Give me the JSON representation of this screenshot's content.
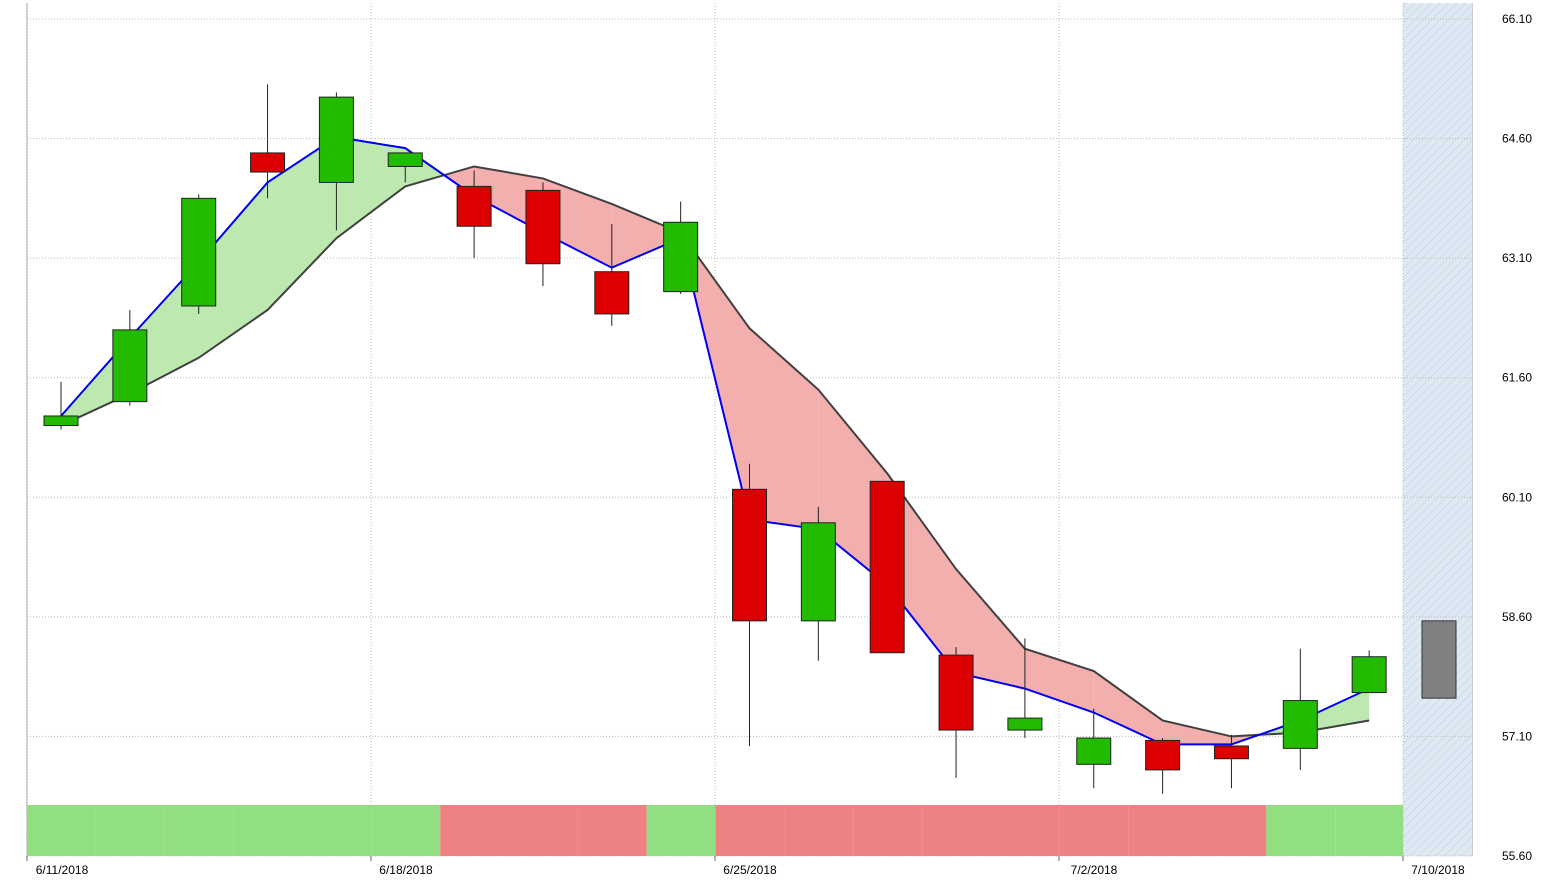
{
  "chart_data": {
    "type": "candlestick",
    "title": "",
    "xlabel": "",
    "ylabel": "",
    "ylim": [
      55.6,
      66.1
    ],
    "y_ticks": [
      "66.10",
      "64.60",
      "63.10",
      "61.60",
      "60.10",
      "58.60",
      "57.10",
      "55.60"
    ],
    "x_ticks": [
      "6/11/2018",
      "6/18/2018",
      "6/25/2018",
      "7/2/2018",
      "7/10/2018"
    ],
    "grid": true,
    "candles": [
      {
        "date": "6/11/2018",
        "open": 61.0,
        "high": 61.55,
        "low": 60.95,
        "close": 61.12,
        "direction": "up"
      },
      {
        "date": "6/12/2018",
        "open": 61.3,
        "high": 62.45,
        "low": 61.25,
        "close": 62.2,
        "direction": "up"
      },
      {
        "date": "6/13/2018",
        "open": 62.5,
        "high": 63.9,
        "low": 62.4,
        "close": 63.85,
        "direction": "up"
      },
      {
        "date": "6/14/2018",
        "open": 64.42,
        "high": 65.28,
        "low": 63.85,
        "close": 64.18,
        "direction": "down"
      },
      {
        "date": "6/15/2018",
        "open": 64.05,
        "high": 65.18,
        "low": 63.45,
        "close": 65.12,
        "direction": "up"
      },
      {
        "date": "6/18/2018",
        "open": 64.25,
        "high": 64.42,
        "low": 64.05,
        "close": 64.42,
        "direction": "up"
      },
      {
        "date": "6/19/2018",
        "open": 64.0,
        "high": 64.2,
        "low": 63.1,
        "close": 63.5,
        "direction": "down"
      },
      {
        "date": "6/20/2018",
        "open": 63.95,
        "high": 64.05,
        "low": 62.75,
        "close": 63.03,
        "direction": "down"
      },
      {
        "date": "6/21/2018",
        "open": 62.93,
        "high": 63.53,
        "low": 62.25,
        "close": 62.4,
        "direction": "down"
      },
      {
        "date": "6/22/2018",
        "open": 62.68,
        "high": 63.81,
        "low": 62.65,
        "close": 63.55,
        "direction": "up"
      },
      {
        "date": "6/25/2018",
        "open": 60.2,
        "high": 60.52,
        "low": 56.98,
        "close": 58.55,
        "direction": "down"
      },
      {
        "date": "6/26/2018",
        "open": 58.55,
        "high": 59.98,
        "low": 58.05,
        "close": 59.78,
        "direction": "up"
      },
      {
        "date": "6/27/2018",
        "open": 60.3,
        "high": 60.3,
        "low": 58.15,
        "close": 58.15,
        "direction": "down"
      },
      {
        "date": "6/28/2018",
        "open": 58.12,
        "high": 58.22,
        "low": 56.58,
        "close": 57.18,
        "direction": "down"
      },
      {
        "date": "6/29/2018",
        "open": 57.18,
        "high": 58.33,
        "low": 57.08,
        "close": 57.33,
        "direction": "up"
      },
      {
        "date": "7/2/2018",
        "open": 56.75,
        "high": 57.45,
        "low": 56.45,
        "close": 57.08,
        "direction": "up"
      },
      {
        "date": "7/3/2018",
        "open": 57.05,
        "high": 57.08,
        "low": 56.38,
        "close": 56.68,
        "direction": "down"
      },
      {
        "date": "7/5/2018",
        "open": 56.98,
        "high": 57.12,
        "low": 56.45,
        "close": 56.82,
        "direction": "down"
      },
      {
        "date": "7/6/2018",
        "open": 56.95,
        "high": 58.2,
        "low": 56.68,
        "close": 57.55,
        "direction": "up"
      },
      {
        "date": "7/9/2018",
        "open": 57.65,
        "high": 58.18,
        "low": 57.65,
        "close": 58.1,
        "direction": "up"
      }
    ],
    "pending_candle": {
      "date": "7/10/2018",
      "open": 58.55,
      "close": 57.58
    },
    "fast_line": [
      61.12,
      62.1,
      63.05,
      64.05,
      64.62,
      64.48,
      63.88,
      63.42,
      62.98,
      63.35,
      59.82,
      59.7,
      59.0,
      57.9,
      57.7,
      57.4,
      57.0,
      57.0,
      57.3,
      57.7
    ],
    "slow_line": [
      61.0,
      61.4,
      61.85,
      62.45,
      63.35,
      64.0,
      64.25,
      64.1,
      63.78,
      63.42,
      62.22,
      61.45,
      60.4,
      59.2,
      58.2,
      57.92,
      57.3,
      57.1,
      57.15,
      57.3
    ],
    "trend_band": [
      "up",
      "up",
      "up",
      "up",
      "up",
      "up",
      "down",
      "down",
      "down",
      "up",
      "down",
      "down",
      "down",
      "down",
      "down",
      "down",
      "down",
      "down",
      "up",
      "up"
    ],
    "colors": {
      "up_candle": "#22bb00",
      "down_candle": "#dd0000",
      "pending_candle": "#808080",
      "fast_line": "#0000ee",
      "slow_line": "#404040",
      "fill_up": "#bde8b0",
      "fill_down": "#f3aeae",
      "band_up": "#92df82",
      "band_down": "#ee8282",
      "grid": "#b8b8b8",
      "forecast_zone": "#dde8f3"
    }
  }
}
